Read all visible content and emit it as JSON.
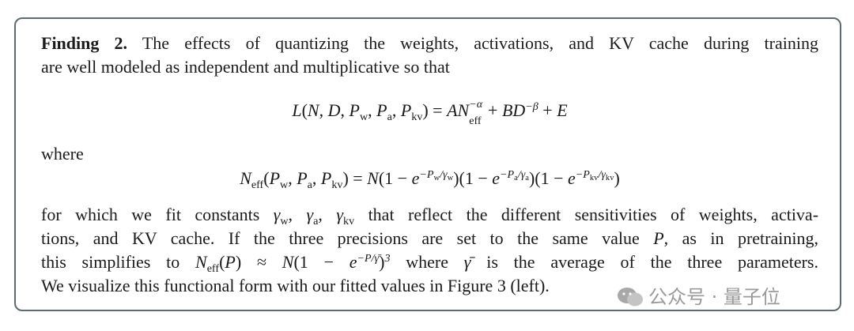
{
  "finding": {
    "blocks": [
      {
        "segments": [
          {
            "text": "Finding 2.",
            "style": "bold"
          },
          {
            "text": " The effects of quantizing the weights, activations, and KV cache during training",
            "style": "normal"
          }
        ]
      },
      {
        "segments": [
          {
            "text": "are well modeled as independent and multiplicative so that",
            "style": "normal"
          }
        ]
      },
      {
        "segments": [
          {
            "text": "L",
            "style": "math"
          },
          {
            "text": "(",
            "style": "normal"
          },
          {
            "text": "N",
            "style": "math"
          },
          {
            "text": ", ",
            "style": "normal"
          },
          {
            "text": "D",
            "style": "math"
          },
          {
            "text": ", ",
            "style": "normal"
          },
          {
            "text": "P",
            "style": "math"
          },
          {
            "text": "w",
            "style": "sub"
          },
          {
            "text": ", ",
            "style": "normal"
          },
          {
            "text": "P",
            "style": "math"
          },
          {
            "text": "a",
            "style": "sub"
          },
          {
            "text": ", ",
            "style": "normal"
          },
          {
            "text": "P",
            "style": "math"
          },
          {
            "text": "kv",
            "style": "sub"
          },
          {
            "text": ") = ",
            "style": "normal"
          },
          {
            "text": "AN",
            "style": "math"
          },
          {
            "sup": "−α",
            "sub": "eff",
            "style": "stack"
          },
          {
            "text": " + ",
            "style": "normal"
          },
          {
            "text": "BD",
            "style": "math"
          },
          {
            "text": "−β",
            "style": "sup"
          },
          {
            "text": " + ",
            "style": "normal"
          },
          {
            "text": "E",
            "style": "math"
          }
        ]
      },
      {
        "segments": [
          {
            "text": "where",
            "style": "normal"
          }
        ]
      },
      {
        "segments": [
          {
            "text": "N",
            "style": "math"
          },
          {
            "text": "eff",
            "style": "sub"
          },
          {
            "text": "(",
            "style": "normal"
          },
          {
            "text": "P",
            "style": "math"
          },
          {
            "text": "w",
            "style": "sub"
          },
          {
            "text": ", ",
            "style": "normal"
          },
          {
            "text": "P",
            "style": "math"
          },
          {
            "text": "a",
            "style": "sub"
          },
          {
            "text": ", ",
            "style": "normal"
          },
          {
            "text": "P",
            "style": "math"
          },
          {
            "text": "kv",
            "style": "sub"
          },
          {
            "text": ") = ",
            "style": "normal"
          },
          {
            "text": "N",
            "style": "math"
          },
          {
            "text": "(1 − ",
            "style": "normal"
          },
          {
            "text": "e",
            "style": "math"
          },
          {
            "text": "−P",
            "style": "sup"
          },
          {
            "text": "w",
            "style": "supsub"
          },
          {
            "text": "/γ",
            "style": "sup"
          },
          {
            "text": "w",
            "style": "supsub"
          },
          {
            "text": ")(1 − ",
            "style": "normal"
          },
          {
            "text": "e",
            "style": "math"
          },
          {
            "text": "−P",
            "style": "sup"
          },
          {
            "text": "a",
            "style": "supsub"
          },
          {
            "text": "/γ",
            "style": "sup"
          },
          {
            "text": "a",
            "style": "supsub"
          },
          {
            "text": ")(1 − ",
            "style": "normal"
          },
          {
            "text": "e",
            "style": "math"
          },
          {
            "text": "−P",
            "style": "sup"
          },
          {
            "text": "kv",
            "style": "supsub"
          },
          {
            "text": "/γ",
            "style": "sup"
          },
          {
            "text": "kv",
            "style": "supsub"
          },
          {
            "text": ")",
            "style": "normal"
          }
        ]
      },
      {
        "segments": [
          {
            "text": "for which we fit constants ",
            "style": "normal"
          },
          {
            "text": "γ",
            "style": "math"
          },
          {
            "text": "w",
            "style": "sub"
          },
          {
            "text": ", ",
            "style": "normal"
          },
          {
            "text": "γ",
            "style": "math"
          },
          {
            "text": "a",
            "style": "sub"
          },
          {
            "text": ", ",
            "style": "normal"
          },
          {
            "text": "γ",
            "style": "math"
          },
          {
            "text": "kv",
            "style": "sub"
          },
          {
            "text": " that reflect the different sensitivities of weights, activa-",
            "style": "normal"
          }
        ]
      },
      {
        "segments": [
          {
            "text": "tions, and KV cache. If the three precisions are set to the same value ",
            "style": "normal"
          },
          {
            "text": "P",
            "style": "math"
          },
          {
            "text": ", as in pretraining,",
            "style": "normal"
          }
        ]
      },
      {
        "segments": [
          {
            "text": "this simplifies to ",
            "style": "normal"
          },
          {
            "text": "N",
            "style": "math"
          },
          {
            "text": "eff",
            "style": "sub"
          },
          {
            "text": "(",
            "style": "normal"
          },
          {
            "text": "P",
            "style": "math"
          },
          {
            "text": ") ≈ ",
            "style": "normal"
          },
          {
            "text": "N",
            "style": "math"
          },
          {
            "text": "(1 − ",
            "style": "normal"
          },
          {
            "text": "e",
            "style": "math"
          },
          {
            "text": "−P/γ̄",
            "style": "sup"
          },
          {
            "text": ")",
            "style": "normal"
          },
          {
            "text": "3",
            "style": "sup"
          },
          {
            "text": " where ",
            "style": "normal"
          },
          {
            "text": "γ̄",
            "style": "math"
          },
          {
            "text": " is the average of the three parameters.",
            "style": "normal"
          }
        ]
      },
      {
        "segments": [
          {
            "text": "We visualize this functional form with our fitted values in Figure 3 (left).",
            "style": "normal"
          }
        ]
      }
    ]
  },
  "watermark": "公众号 · 量子位"
}
